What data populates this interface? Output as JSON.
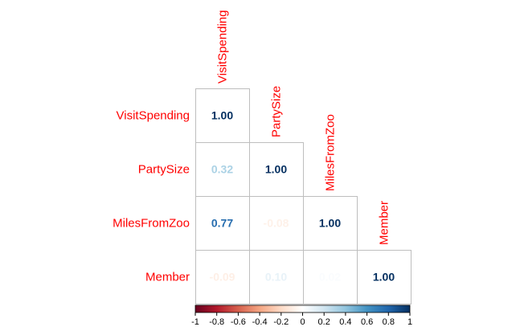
{
  "chart_data": {
    "type": "heatmap",
    "subtype": "lower-triangular correlation matrix",
    "variables": [
      "VisitSpending",
      "PartySize",
      "MilesFromZoo",
      "Member"
    ],
    "matrix": [
      [
        1.0,
        null,
        null,
        null
      ],
      [
        0.32,
        1.0,
        null,
        null
      ],
      [
        0.77,
        -0.08,
        1.0,
        null
      ],
      [
        -0.09,
        0.1,
        0.02,
        1.0
      ]
    ],
    "value_labels": [
      [
        "1.00",
        null,
        null,
        null
      ],
      [
        "0.32",
        "1.00",
        null,
        null
      ],
      [
        "0.77",
        "-0.08",
        "1.00",
        null
      ],
      [
        "-0.09",
        "0.10",
        "0.02",
        "1.00"
      ]
    ],
    "colorbar": {
      "range": [
        -1,
        1
      ],
      "ticks": [
        -1,
        -0.8,
        -0.6,
        -0.4,
        -0.2,
        0,
        0.2,
        0.4,
        0.6,
        0.8,
        1
      ],
      "tick_labels": [
        "-1",
        "-0.8",
        "-0.6",
        "-0.4",
        "-0.2",
        "0",
        "0.2",
        "0.4",
        "0.6",
        "0.8",
        "1"
      ],
      "placement": "bottom",
      "colors": [
        "#67001f",
        "#b2182b",
        "#d6604d",
        "#f4a582",
        "#fddbc7",
        "#ffffff",
        "#d1e5f0",
        "#92c5de",
        "#4393c3",
        "#2166ac",
        "#053061"
      ]
    },
    "label_color": "#ff0000",
    "grid_color": "#bebebe"
  }
}
